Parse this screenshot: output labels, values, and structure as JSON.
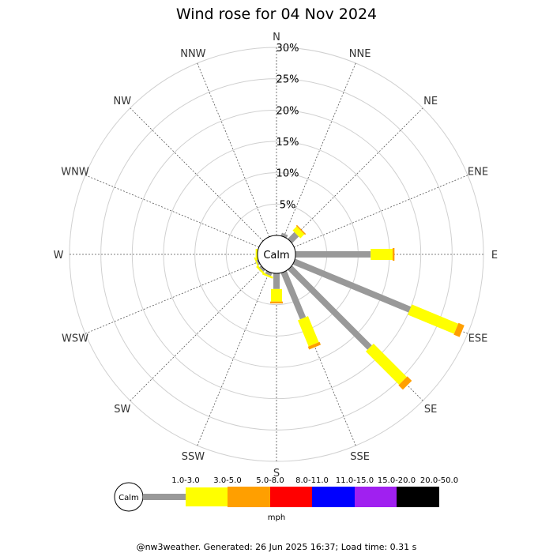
{
  "title": "Wind rose for 04 Nov 2024",
  "footer": "@nw3weather. Generated: 26 Jun 2025 16:37; Load time: 0.31 s",
  "calm_label": "Calm",
  "unit_label": "mph",
  "colors": {
    "ring": "#d0d0d0",
    "spoke": "#555555",
    "bin_1_3": "#999999",
    "bin_3_5": "#ffff00",
    "bin_5_8": "#ff9f00",
    "bin_8_11": "#ff0000",
    "bin_11_15": "#0000ff",
    "bin_15_20": "#a020f0",
    "bin_20_50": "#000000"
  },
  "chart_data": {
    "type": "windrose",
    "title": "Wind rose for 04 Nov 2024",
    "directions": [
      "N",
      "NNE",
      "NE",
      "ENE",
      "E",
      "ESE",
      "SE",
      "SSE",
      "S",
      "SSW",
      "SW",
      "WSW",
      "W",
      "WNW",
      "NW",
      "NNW"
    ],
    "radial_ticks": [
      "5%",
      "10%",
      "15%",
      "20%",
      "25%",
      "30%"
    ],
    "radial_max": 30,
    "speed_bins": [
      "1.0-3.0",
      "3.0-5.0",
      "5.0-8.0",
      "8.0-11.0",
      "11.0-15.0",
      "15.0-20.0",
      "20.0-50.0"
    ],
    "speed_unit": "mph",
    "calm_label": "Calm",
    "series": [
      {
        "bin": "1.0-3.0",
        "values": [
          0,
          0.5,
          1.5,
          0,
          12.0,
          20.0,
          18.0,
          8.0,
          2.5,
          0.5,
          0.4,
          0.3,
          0,
          0,
          0,
          0
        ]
      },
      {
        "bin": "3.0-5.0",
        "values": [
          0,
          0,
          0.9,
          0,
          3.5,
          8.0,
          7.5,
          4.5,
          2.0,
          0.3,
          0.3,
          0.2,
          0.3,
          0,
          0,
          0
        ]
      },
      {
        "bin": "5.0-8.0",
        "values": [
          0,
          0,
          0.2,
          0,
          0.3,
          1.0,
          1.0,
          0.5,
          0.3,
          0,
          0,
          0,
          0,
          0,
          0,
          0
        ]
      }
    ]
  }
}
